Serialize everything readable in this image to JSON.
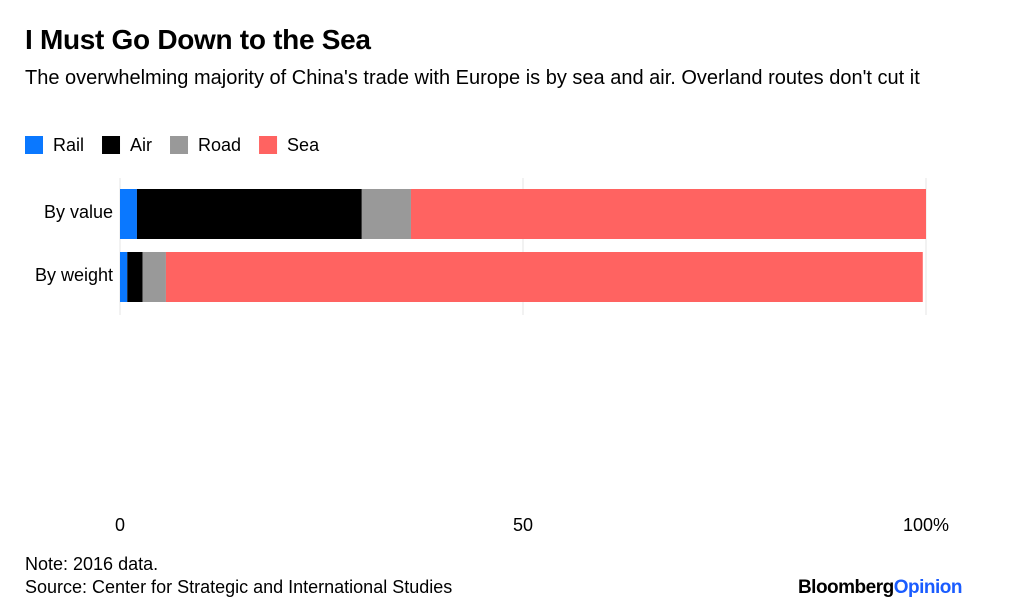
{
  "chart_data": {
    "type": "stacked-barh",
    "title": "I Must Go Down to the Sea",
    "subtitle": "The overwhelming majority of China's trade with Europe is by sea and air. Overland routes don't cut it",
    "categories": [
      "By value",
      "By weight"
    ],
    "series": [
      {
        "name": "Rail",
        "color": "#0a78ff",
        "values": [
          2.1,
          0.9
        ]
      },
      {
        "name": "Air",
        "color": "#000000",
        "values": [
          27.9,
          1.9
        ]
      },
      {
        "name": "Road",
        "color": "#999999",
        "values": [
          6.1,
          2.9
        ]
      },
      {
        "name": "Sea",
        "color": "#ff6361",
        "values": [
          63.9,
          93.9
        ]
      }
    ],
    "xlim": [
      0,
      100
    ],
    "xticks": [
      0,
      50,
      {
        "value": 100,
        "label": "100%"
      }
    ],
    "grid": true,
    "legend": "top-left",
    "note": "Note: 2016 data.",
    "source": "Source: Center for Strategic and International Studies",
    "branding": [
      "Bloomberg",
      "Opinion"
    ]
  }
}
